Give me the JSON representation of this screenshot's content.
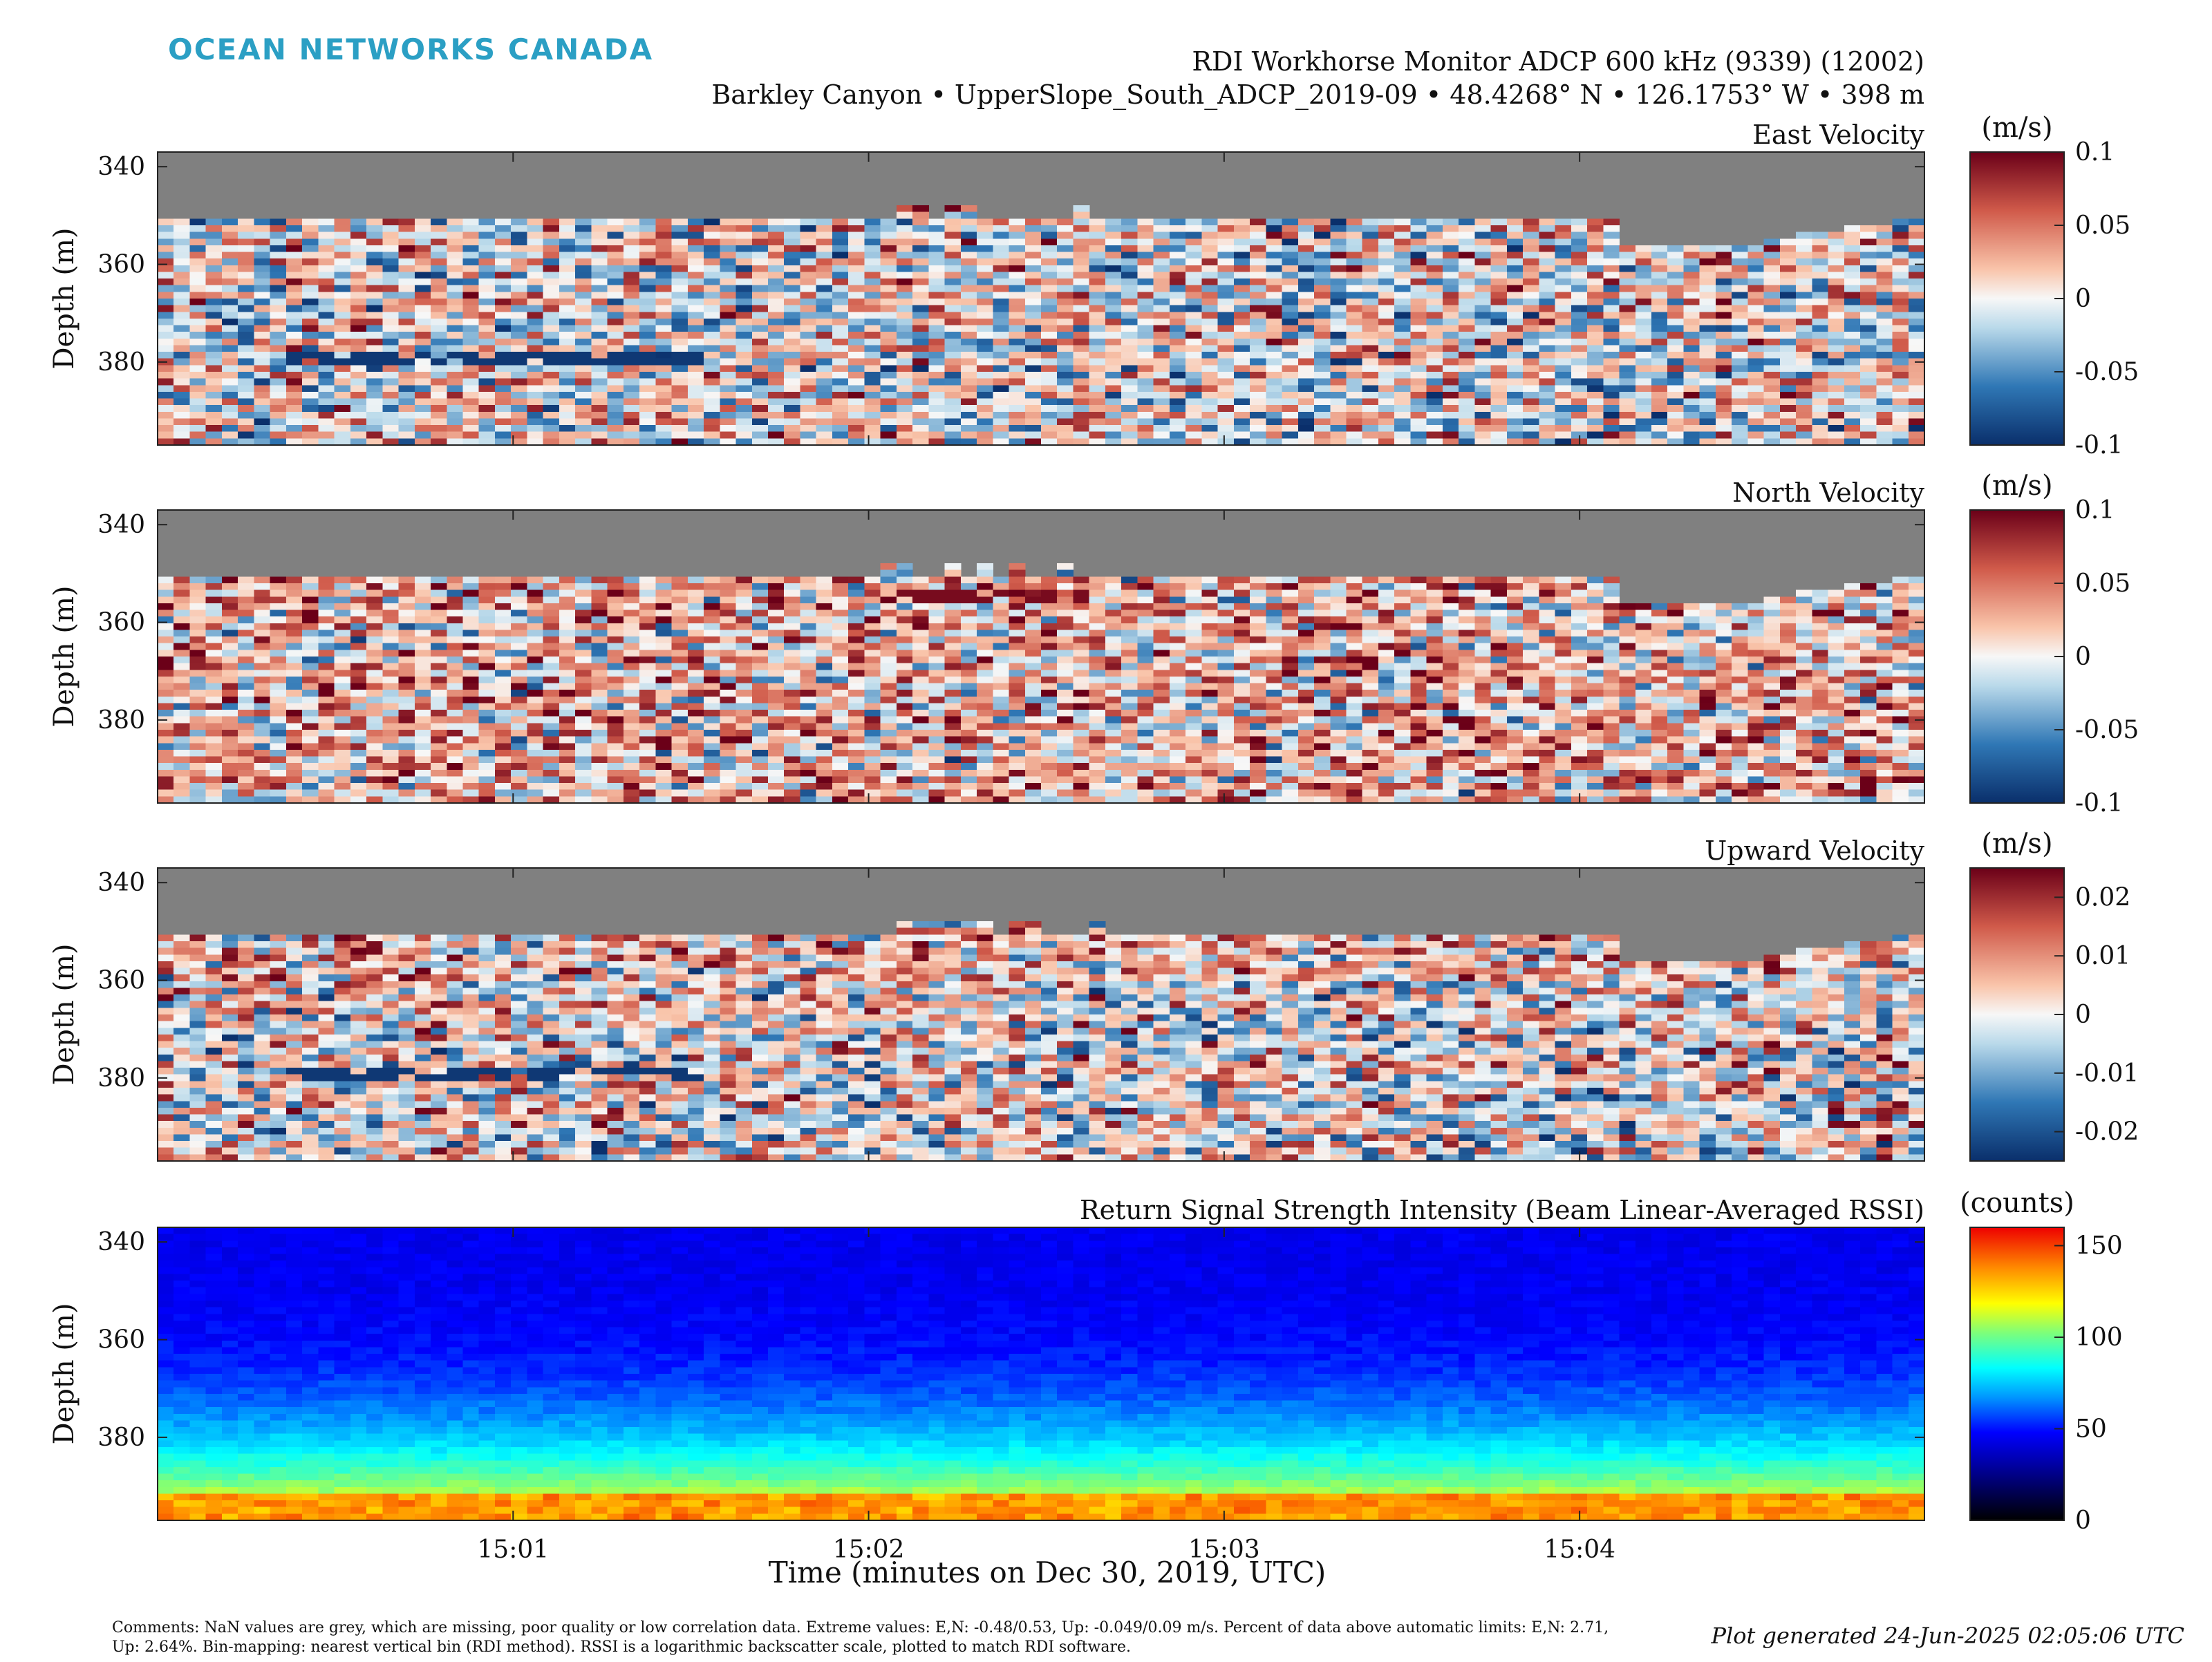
{
  "brand": "OCEAN NETWORKS CANADA",
  "header": {
    "title": "RDI Workhorse Monitor ADCP 600 kHz (9339) (12002)",
    "subtitle": "Barkley Canyon • UpperSlope_South_ADCP_2019-09 • 48.4268° N • 126.1753° W • 398 m"
  },
  "axes": {
    "ylabel": "Depth (m)",
    "xlabel": "Time (minutes on Dec 30, 2019, UTC)",
    "yticks": [
      340,
      360,
      380
    ],
    "ylim": [
      337,
      397
    ],
    "xticks": [
      "15:01",
      "15:02",
      "15:03",
      "15:04"
    ],
    "xtick_minutes": [
      1,
      2,
      3,
      4
    ],
    "xlim_minutes": [
      0.0,
      4.97
    ]
  },
  "missing_color": "#808080",
  "footer": {
    "comments": "Comments: NaN values are grey, which are missing, poor quality or low correlation data. Extreme values: E,N: -0.48/0.53, Up: -0.049/0.09 m/s. Percent of data above automatic limits: E,N: 2.71, Up: 2.64%. Bin-mapping: nearest vertical bin (RDI method). RSSI is a logarithmic backscatter scale, plotted to match RDI software.",
    "generated": "Plot generated 24-Jun-2025 02:05:06 UTC"
  },
  "chart_data": [
    {
      "type": "heatmap",
      "title": "East Velocity",
      "colorbar_unit": "(m/s)",
      "colormap": "red-white-blue",
      "clim": [
        -0.1,
        0.1
      ],
      "colorbar_ticks": [
        "0.1",
        "0.05",
        "0",
        "-0.05",
        "-0.1"
      ],
      "colorbar_tick_values": [
        0.1,
        0.05,
        0,
        -0.05,
        -0.1
      ]
    },
    {
      "type": "heatmap",
      "title": "North Velocity",
      "colorbar_unit": "(m/s)",
      "colormap": "red-white-blue",
      "clim": [
        -0.1,
        0.1
      ],
      "colorbar_ticks": [
        "0.1",
        "0.05",
        "0",
        "-0.05",
        "-0.1"
      ],
      "colorbar_tick_values": [
        0.1,
        0.05,
        0,
        -0.05,
        -0.1
      ]
    },
    {
      "type": "heatmap",
      "title": "Upward Velocity",
      "colorbar_unit": "(m/s)",
      "colormap": "red-white-blue",
      "clim": [
        -0.025,
        0.025
      ],
      "colorbar_ticks": [
        "0.02",
        "0.01",
        "0",
        "-0.01",
        "-0.02"
      ],
      "colorbar_tick_values": [
        0.02,
        0.01,
        0,
        -0.01,
        -0.02
      ]
    },
    {
      "type": "heatmap",
      "title": "Return Signal Strength Intensity (Beam Linear-Averaged RSSI)",
      "colorbar_unit": "(counts)",
      "colormap": "jet",
      "clim": [
        0,
        160
      ],
      "colorbar_ticks": [
        "150",
        "100",
        "50",
        "0"
      ],
      "colorbar_tick_values": [
        150,
        100,
        50,
        0
      ]
    }
  ]
}
